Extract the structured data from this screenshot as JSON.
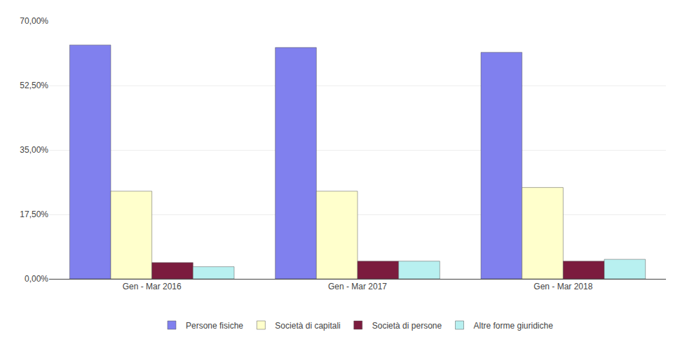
{
  "chart_data": {
    "type": "bar",
    "categories": [
      "Gen - Mar 2016",
      "Gen - Mar 2017",
      "Gen - Mar 2018"
    ],
    "series": [
      {
        "name": "Persone fisiche",
        "color": "#8080ee",
        "values": [
          0.635,
          0.628,
          0.615
        ]
      },
      {
        "name": "Società di capitali",
        "color": "#ffffcc",
        "values": [
          0.238,
          0.238,
          0.248
        ]
      },
      {
        "name": "Società di persone",
        "color": "#7b1c3e",
        "values": [
          0.044,
          0.048,
          0.048
        ]
      },
      {
        "name": "Altre forme giuridiche",
        "color": "#b8f0f0",
        "values": [
          0.033,
          0.048,
          0.053
        ]
      }
    ],
    "ylim": [
      0.0,
      0.7
    ],
    "yticks": [
      {
        "value": 0.0,
        "label": "0,00%"
      },
      {
        "value": 0.175,
        "label": "17,50%"
      },
      {
        "value": 0.35,
        "label": "35,00%"
      },
      {
        "value": 0.525,
        "label": "52,50%"
      },
      {
        "value": 0.7,
        "label": "70,00%"
      }
    ],
    "grid": true,
    "legend": "bottom"
  }
}
